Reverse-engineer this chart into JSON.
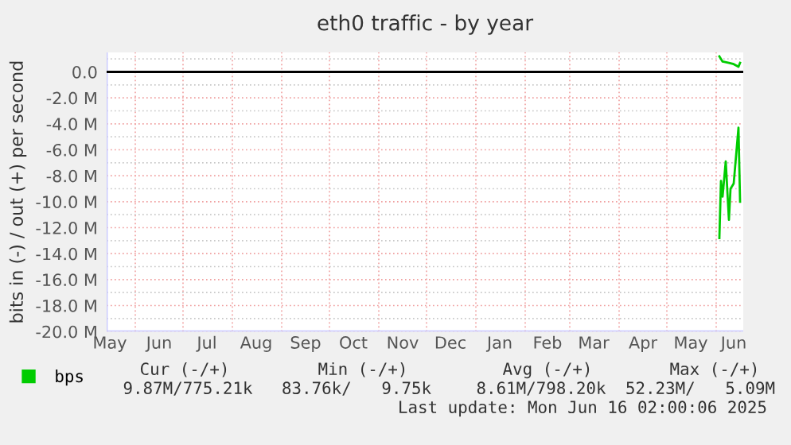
{
  "chart_data": {
    "type": "line",
    "title": "eth0 traffic - by year",
    "ylabel": "bits in (-) / out (+) per second",
    "series": [
      {
        "name": null,
        "color": "#00cc00",
        "x": [
          "2025-06-03",
          "2025-06-04",
          "2025-06-05",
          "2025-06-07",
          "2025-06-09",
          "2025-06-10",
          "2025-06-12",
          "2025-06-15",
          "2025-06-16"
        ],
        "values": [
          -12.8,
          -8.4,
          -9.6,
          -6.9,
          -11.4,
          -9.0,
          -8.6,
          -4.3,
          -10.0
        ]
      },
      {
        "name": "bps",
        "color": "#00cc00",
        "x": [
          "2025-06-03",
          "2025-06-05",
          "2025-06-09",
          "2025-06-12",
          "2025-06-15",
          "2025-06-16"
        ],
        "values": [
          1.2,
          0.8,
          0.7,
          0.6,
          0.4,
          0.7
        ]
      }
    ],
    "xlim": [
      "2024-05-14",
      "2025-06-18"
    ],
    "xticks": [
      {
        "value": "2024-05-16",
        "label": "May"
      },
      {
        "value": "2024-06-01",
        "label": null
      },
      {
        "value": "2024-06-16",
        "label": "Jun"
      },
      {
        "value": "2024-07-01",
        "label": null
      },
      {
        "value": "2024-07-16",
        "label": "Jul"
      },
      {
        "value": "2024-08-01",
        "label": null
      },
      {
        "value": "2024-08-16",
        "label": "Aug"
      },
      {
        "value": "2024-09-01",
        "label": null
      },
      {
        "value": "2024-09-16",
        "label": "Sep"
      },
      {
        "value": "2024-10-01",
        "label": null
      },
      {
        "value": "2024-10-16",
        "label": "Oct"
      },
      {
        "value": "2024-11-01",
        "label": null
      },
      {
        "value": "2024-11-16",
        "label": "Nov"
      },
      {
        "value": "2024-12-01",
        "label": null
      },
      {
        "value": "2024-12-16",
        "label": "Dec"
      },
      {
        "value": "2025-01-01",
        "label": null
      },
      {
        "value": "2025-01-16",
        "label": "Jan"
      },
      {
        "value": "2025-02-01",
        "label": null
      },
      {
        "value": "2025-02-15",
        "label": "Feb"
      },
      {
        "value": "2025-03-01",
        "label": null
      },
      {
        "value": "2025-03-16",
        "label": "Mar"
      },
      {
        "value": "2025-04-01",
        "label": null
      },
      {
        "value": "2025-04-16",
        "label": "Apr"
      },
      {
        "value": "2025-05-01",
        "label": null
      },
      {
        "value": "2025-05-16",
        "label": "May"
      },
      {
        "value": "2025-06-01",
        "label": null
      },
      {
        "value": "2025-06-12",
        "label": "Jun"
      }
    ],
    "ylim": [
      -20,
      1.5
    ],
    "yticks": [
      {
        "value": 0,
        "label": "0.0"
      },
      {
        "value": -1,
        "label": null
      },
      {
        "value": -2,
        "label": "-2.0 M"
      },
      {
        "value": -3,
        "label": null
      },
      {
        "value": -4,
        "label": "-4.0 M"
      },
      {
        "value": -5,
        "label": null
      },
      {
        "value": -6,
        "label": "-6.0 M"
      },
      {
        "value": -7,
        "label": null
      },
      {
        "value": -8,
        "label": "-8.0 M"
      },
      {
        "value": -9,
        "label": null
      },
      {
        "value": -10,
        "label": "-10.0 M"
      },
      {
        "value": -11,
        "label": null
      },
      {
        "value": -12,
        "label": "-12.0 M"
      },
      {
        "value": -13,
        "label": null
      },
      {
        "value": -14,
        "label": "-14.0 M"
      },
      {
        "value": -15,
        "label": null
      },
      {
        "value": -16,
        "label": "-16.0 M"
      },
      {
        "value": -17,
        "label": null
      },
      {
        "value": -18,
        "label": "-18.0 M"
      },
      {
        "value": -19,
        "label": null
      },
      {
        "value": -20,
        "label": "-20.0 M"
      },
      {
        "value": 1,
        "label": null
      }
    ],
    "ref_lines": [
      {
        "axis": "y",
        "value": 0,
        "color": "#000000"
      }
    ],
    "grid": true,
    "legend": "bottom",
    "marker": "none",
    "line_style": "solid",
    "annotations": [
      "Cur (-/+)",
      "Min (-/+)",
      "Avg (-/+)",
      "Max (-/+)",
      "9.87M/775.21k",
      "83.76k/   9.75k",
      "8.61M/798.20k",
      "52.23M/   5.09M",
      "Last update: Mon Jun 16 02:00:06 2025"
    ]
  }
}
